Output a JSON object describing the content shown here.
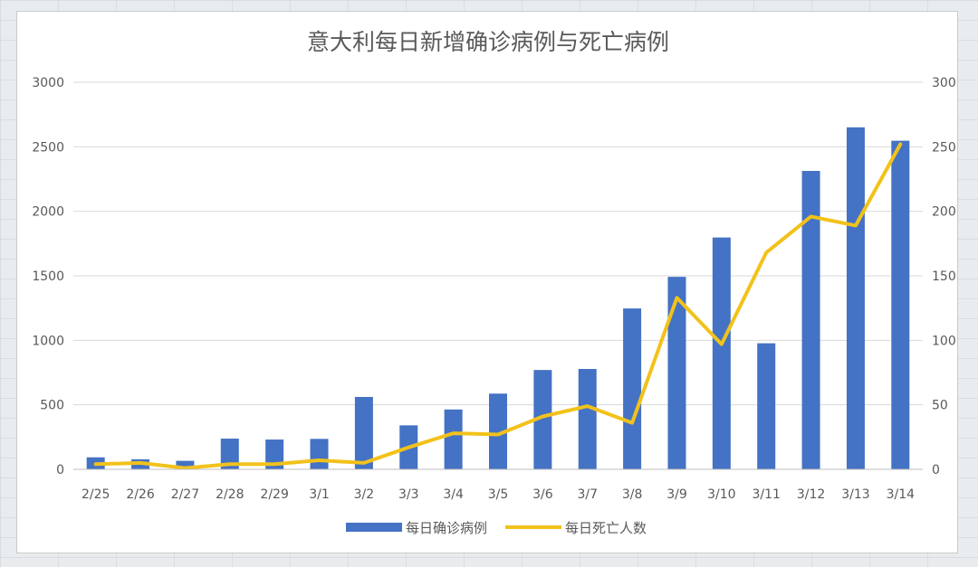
{
  "chart_data": {
    "type": "bar+line",
    "title": "意大利每日新增确诊病例与死亡病例",
    "categories": [
      "2/25",
      "2/26",
      "2/27",
      "2/28",
      "2/29",
      "3/1",
      "3/2",
      "3/3",
      "3/4",
      "3/5",
      "3/6",
      "3/7",
      "3/8",
      "3/9",
      "3/10",
      "3/11",
      "3/12",
      "3/13",
      "3/14"
    ],
    "series": [
      {
        "name": "每日确诊病例",
        "kind": "bar",
        "axis": "left",
        "color": "#4472c4",
        "values": [
          93,
          78,
          66,
          238,
          231,
          236,
          561,
          341,
          464,
          587,
          770,
          778,
          1247,
          1492,
          1797,
          977,
          2313,
          2651,
          2547
        ]
      },
      {
        "name": "每日死亡人数",
        "kind": "line",
        "axis": "right",
        "color": "#f2c21b",
        "values": [
          4,
          5,
          1,
          4,
          4,
          7,
          5,
          17,
          28,
          27,
          41,
          49,
          36,
          133,
          97,
          168,
          196,
          189,
          252
        ]
      }
    ],
    "y_left": {
      "min": 0,
      "max": 3000,
      "ticks": [
        "0",
        "500",
        "1000",
        "1500",
        "2000",
        "2500",
        "3000"
      ]
    },
    "y_right": {
      "min": 0,
      "max": 300,
      "ticks": [
        "0",
        "50",
        "100",
        "150",
        "200",
        "250",
        "300"
      ]
    },
    "grid": true,
    "legend": "bottom"
  }
}
